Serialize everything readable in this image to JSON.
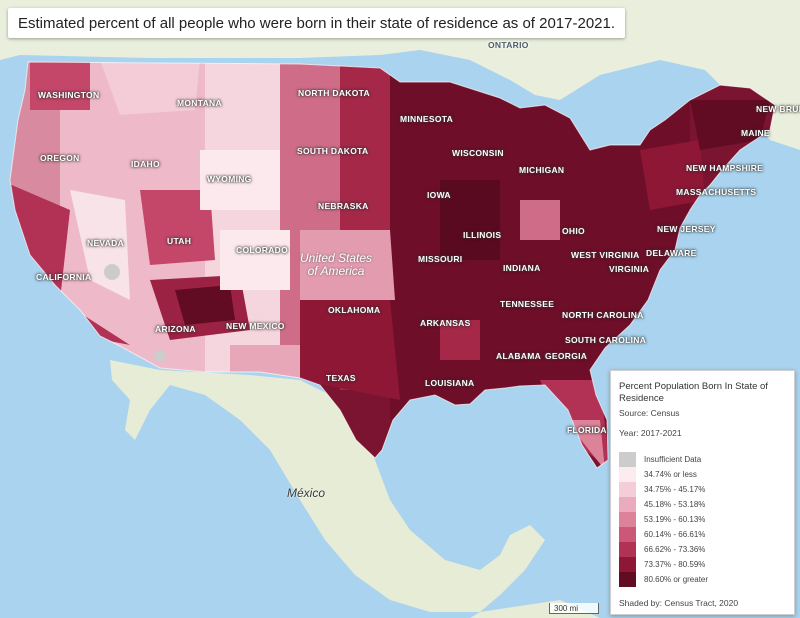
{
  "title": "Estimated percent of all people who were born in their state of residence as of 2017-2021.",
  "colors": {
    "water": "#a9d3ee",
    "land": "#eef1e4",
    "insufficient": "#cccccc",
    "c1": "#fcecf0",
    "c2": "#f5cdd8",
    "c3": "#ebaabd",
    "c4": "#dc8299",
    "c5": "#cc5877",
    "c6": "#b23255",
    "c7": "#8e1736",
    "c8": "#620c23"
  },
  "labels": {
    "ontario": "ONTARIO",
    "washington": "WASHINGTON",
    "montana": "MONTANA",
    "north_dakota": "NORTH DAKOTA",
    "minnesota": "MINNESOTA",
    "new_brunswick": "NEW BRUN",
    "maine": "MAINE",
    "oregon": "OREGON",
    "idaho": "IDAHO",
    "south_dakota": "SOUTH DAKOTA",
    "wisconsin": "WISCONSIN",
    "michigan": "MICHIGAN",
    "new_hampshire": "NEW HAMPSHIRE",
    "massachusetts": "MASSACHUSETTS",
    "wyoming": "WYOMING",
    "nebraska": "NEBRASKA",
    "iowa": "IOWA",
    "new_jersey": "NEW JERSEY",
    "nevada": "NEVADA",
    "utah": "UTAH",
    "colorado": "COLORADO",
    "illinois": "ILLINOIS",
    "ohio": "OHIO",
    "delaware": "DELAWARE",
    "west_virginia": "WEST VIRGINIA",
    "virginia": "VIRGINIA",
    "california": "CALIFORNIA",
    "missouri": "MISSOURI",
    "indiana": "INDIANA",
    "tennessee": "TENNESSEE",
    "oklahoma": "OKLAHOMA",
    "north_carolina": "NORTH CAROLINA",
    "arizona": "ARIZONA",
    "new_mexico": "NEW MEXICO",
    "arkansas": "ARKANSAS",
    "south_carolina": "SOUTH CAROLINA",
    "alabama": "ALABAMA",
    "georgia": "GEORGIA",
    "texas": "TEXAS",
    "louisiana": "LOUISIANA",
    "florida": "FLORIDA",
    "usa_line1": "United States",
    "usa_line2": "of America",
    "mexico": "México"
  },
  "legend": {
    "title": "Percent Population Born In State of Residence",
    "source": "Source: Census",
    "year": "Year: 2017-2021",
    "items": [
      {
        "label": "Insufficient Data",
        "color": "#cccccc"
      },
      {
        "label": "34.74% or less",
        "color": "#fcecf0"
      },
      {
        "label": "34.75% - 45.17%",
        "color": "#f5cdd8"
      },
      {
        "label": "45.18% - 53.18%",
        "color": "#ebaabd"
      },
      {
        "label": "53.19% - 60.13%",
        "color": "#dc8299"
      },
      {
        "label": "60.14% - 66.61%",
        "color": "#cc5877"
      },
      {
        "label": "66.62% - 73.36%",
        "color": "#b23255"
      },
      {
        "label": "73.37% - 80.59%",
        "color": "#8e1736"
      },
      {
        "label": "80.60% or greater",
        "color": "#620c23"
      }
    ],
    "shaded_by": "Shaded by: Census Tract, 2020"
  },
  "scale": "300 mi"
}
